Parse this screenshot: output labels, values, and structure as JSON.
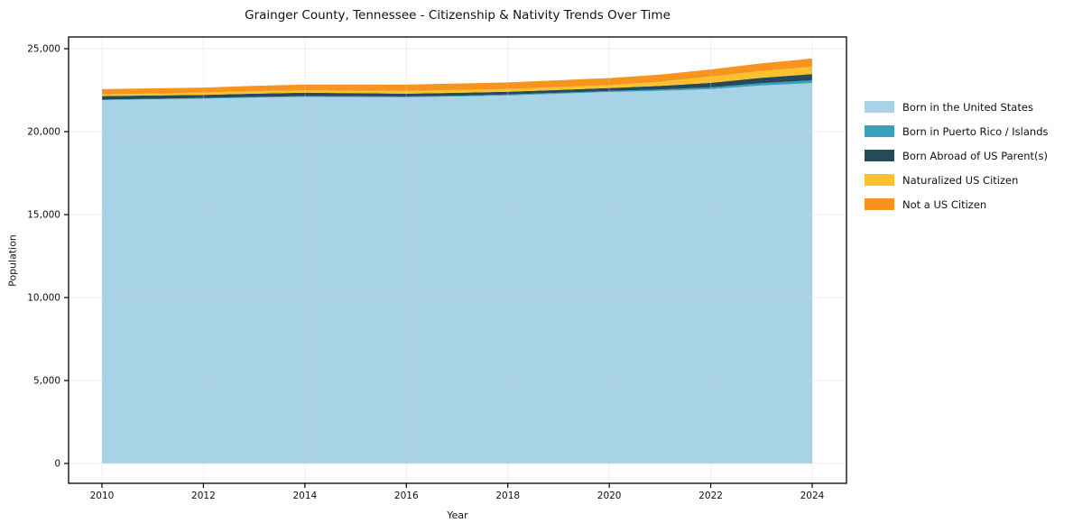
{
  "title": "Grainger County, Tennessee - Citizenship & Nativity Trends Over Time",
  "chart_data": {
    "type": "area",
    "stacked": true,
    "title": "Grainger County, Tennessee - Citizenship & Nativity Trends Over Time",
    "xlabel": "Year",
    "ylabel": "Population",
    "x": [
      2010,
      2011,
      2012,
      2013,
      2014,
      2015,
      2016,
      2017,
      2018,
      2019,
      2020,
      2021,
      2022,
      2023,
      2024
    ],
    "series": [
      {
        "name": "Born in the United States",
        "color": "#A8D3E6",
        "values": [
          21900,
          21950,
          21990,
          22050,
          22100,
          22080,
          22070,
          22120,
          22180,
          22280,
          22390,
          22460,
          22560,
          22780,
          22930
        ]
      },
      {
        "name": "Born in Puerto Rico / Islands",
        "color": "#38A0C0",
        "values": [
          30,
          30,
          40,
          40,
          40,
          50,
          50,
          50,
          60,
          60,
          60,
          80,
          110,
          140,
          165
        ]
      },
      {
        "name": "Born Abroad of US Parent(s)",
        "color": "#254B5A",
        "values": [
          210,
          200,
          190,
          200,
          210,
          190,
          170,
          170,
          160,
          170,
          180,
          220,
          270,
          330,
          380
        ]
      },
      {
        "name": "Naturalized US Citizen",
        "color": "#FCC22D",
        "values": [
          110,
          120,
          140,
          150,
          140,
          150,
          160,
          170,
          170,
          180,
          170,
          250,
          380,
          410,
          440
        ]
      },
      {
        "name": "Not a US Citizen",
        "color": "#F6941E",
        "values": [
          310,
          310,
          300,
          320,
          350,
          370,
          380,
          390,
          400,
          410,
          430,
          430,
          430,
          460,
          490
        ]
      }
    ],
    "xticks": [
      2010,
      2012,
      2014,
      2016,
      2018,
      2020,
      2022,
      2024
    ],
    "yticks": [
      0,
      5000,
      10000,
      15000,
      20000,
      25000
    ],
    "ytick_labels": [
      "0",
      "5,000",
      "10,000",
      "15,000",
      "20,000",
      "25,000"
    ],
    "xlim": [
      2010,
      2024
    ],
    "ylim": [
      0,
      25000
    ],
    "grid": true,
    "legend_position": "right"
  },
  "colors": {
    "axis_frame": "#000000",
    "grid": "#cfcfcf",
    "background": "#ffffff"
  }
}
